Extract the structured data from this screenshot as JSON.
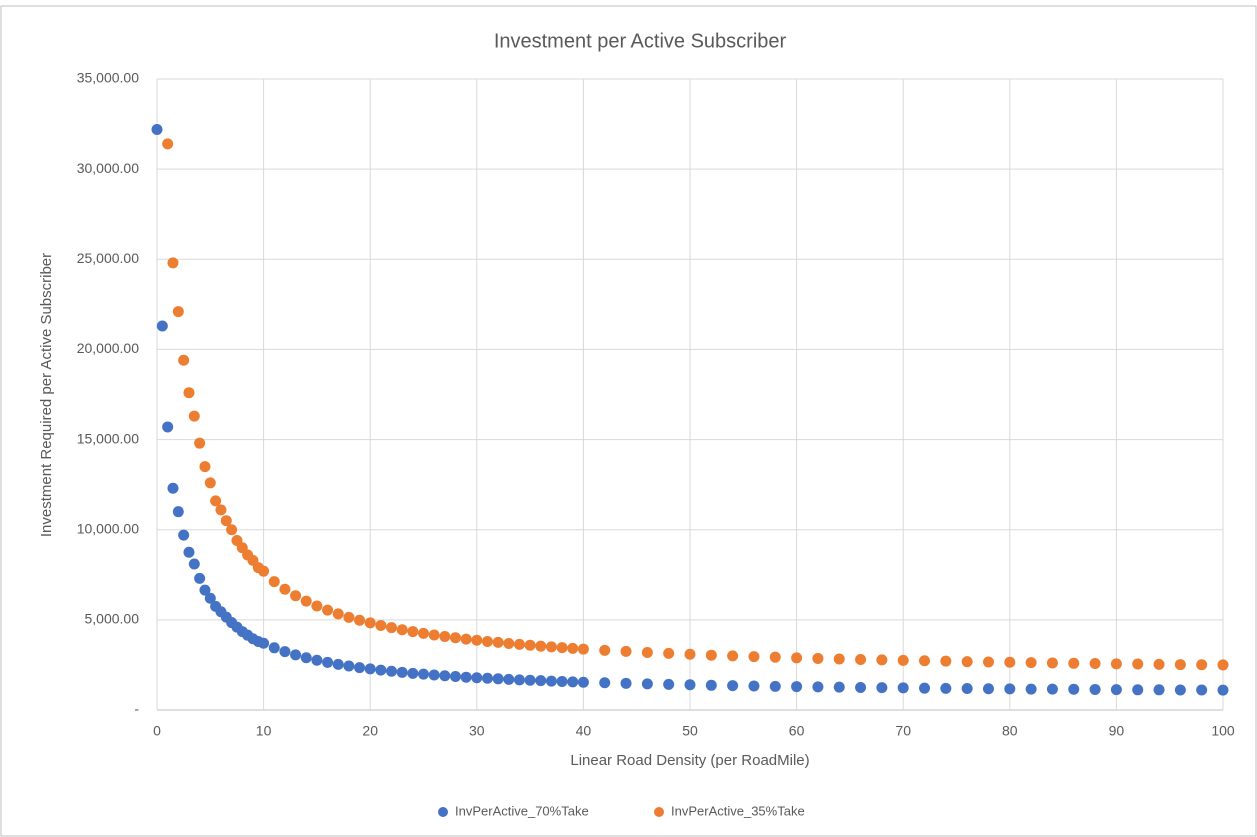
{
  "chart_data": {
    "type": "scatter",
    "title": "Investment per Active Subscriber",
    "x_label": "Linear Road Density (per RoadMile)",
    "y_label": "Investment Required per Active Subscriber",
    "x": [
      0,
      0.5,
      1,
      1.5,
      2,
      2.5,
      3,
      3.5,
      4,
      4.5,
      5,
      5.5,
      6,
      6.5,
      7,
      7.5,
      8,
      8.5,
      9,
      9.5,
      10,
      11,
      12,
      13,
      14,
      15,
      16,
      17,
      18,
      19,
      20,
      21,
      22,
      23,
      24,
      25,
      26,
      27,
      28,
      29,
      30,
      31,
      32,
      33,
      34,
      35,
      36,
      37,
      38,
      39,
      40,
      42,
      44,
      46,
      48,
      50,
      52,
      54,
      56,
      58,
      60,
      62,
      64,
      66,
      68,
      70,
      72,
      74,
      76,
      78,
      80,
      82,
      84,
      86,
      88,
      90,
      92,
      94,
      96,
      98,
      100
    ],
    "series": [
      {
        "name": "InvPerActive_70%Take",
        "color": "#4472c4",
        "values": [
          32200,
          21300,
          15700,
          12300,
          11000,
          9700,
          8750,
          8100,
          7300,
          6650,
          6200,
          5750,
          5450,
          5150,
          4850,
          4600,
          4350,
          4150,
          3950,
          3800,
          3700,
          3450,
          3240,
          3060,
          2900,
          2760,
          2640,
          2530,
          2440,
          2350,
          2280,
          2210,
          2150,
          2090,
          2030,
          1990,
          1940,
          1900,
          1860,
          1820,
          1790,
          1760,
          1730,
          1700,
          1670,
          1650,
          1630,
          1600,
          1580,
          1560,
          1540,
          1510,
          1480,
          1450,
          1420,
          1400,
          1370,
          1350,
          1330,
          1310,
          1300,
          1280,
          1270,
          1250,
          1240,
          1230,
          1210,
          1200,
          1190,
          1180,
          1170,
          1160,
          1160,
          1150,
          1140,
          1130,
          1120,
          1120,
          1110,
          1110,
          1100
        ]
      },
      {
        "name": "InvPerActive_35%Take",
        "color": "#ed7d31",
        "values": [
          null,
          null,
          31400,
          24800,
          22100,
          19400,
          17600,
          16300,
          14800,
          13500,
          12600,
          11600,
          11100,
          10500,
          10000,
          9400,
          9000,
          8600,
          8300,
          7900,
          7700,
          7120,
          6700,
          6340,
          6040,
          5770,
          5540,
          5330,
          5140,
          4980,
          4830,
          4690,
          4570,
          4450,
          4350,
          4250,
          4160,
          4080,
          4010,
          3930,
          3870,
          3800,
          3750,
          3690,
          3640,
          3590,
          3540,
          3500,
          3460,
          3420,
          3380,
          3310,
          3250,
          3190,
          3140,
          3090,
          3040,
          3000,
          2960,
          2930,
          2890,
          2860,
          2830,
          2800,
          2780,
          2750,
          2730,
          2710,
          2680,
          2660,
          2650,
          2630,
          2610,
          2590,
          2580,
          2560,
          2550,
          2530,
          2520,
          2510,
          2500
        ]
      }
    ],
    "xlim": [
      0,
      100
    ],
    "xticks": [
      0,
      10,
      20,
      30,
      40,
      50,
      60,
      70,
      80,
      90,
      100
    ],
    "ylim": [
      0,
      35000
    ],
    "yticks": [
      {
        "value": 0,
        "label": "-"
      },
      {
        "value": 5000,
        "label": "5,000.00"
      },
      {
        "value": 10000,
        "label": "10,000.00"
      },
      {
        "value": 15000,
        "label": "15,000.00"
      },
      {
        "value": 20000,
        "label": "20,000.00"
      },
      {
        "value": 25000,
        "label": "25,000.00"
      },
      {
        "value": 30000,
        "label": "30,000.00"
      },
      {
        "value": 35000,
        "label": "35,000.00"
      }
    ],
    "grid": true,
    "legend": "bottom"
  }
}
